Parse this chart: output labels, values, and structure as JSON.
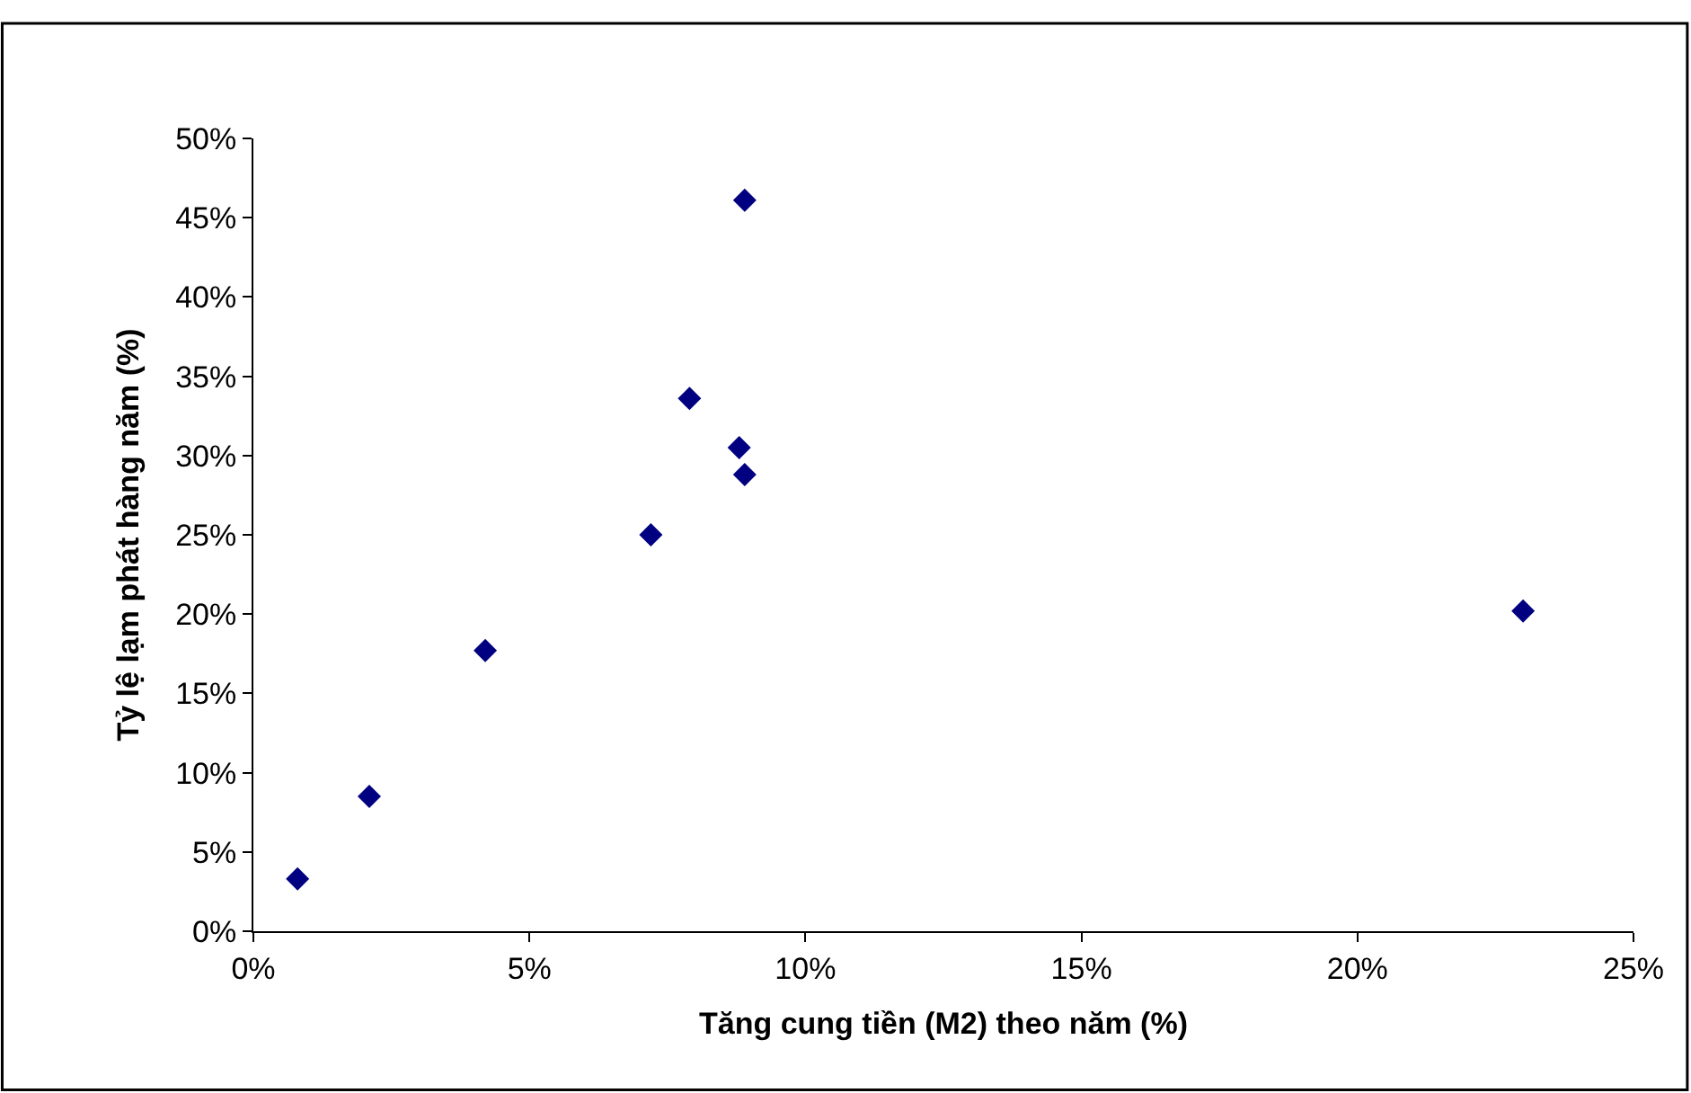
{
  "chart_data": {
    "type": "scatter",
    "xlabel": "Tăng cung tiền (M2) theo năm (%)",
    "ylabel": "Tỷ lệ lạm phát hàng năm (%)",
    "x": [
      0.8,
      2.1,
      4.2,
      7.2,
      7.9,
      8.8,
      8.9,
      8.9,
      23.0
    ],
    "series": [
      {
        "color": "#000080",
        "values": [
          3.3,
          8.5,
          17.7,
          25.0,
          33.6,
          30.5,
          28.8,
          46.1,
          20.2
        ]
      }
    ],
    "marker": "diamond",
    "grid": false,
    "xlim": [
      0,
      25
    ],
    "xticks": [
      {
        "value": 0,
        "label": "0%"
      },
      {
        "value": 5,
        "label": "5%"
      },
      {
        "value": 10,
        "label": "10%"
      },
      {
        "value": 15,
        "label": "15%"
      },
      {
        "value": 20,
        "label": "20%"
      },
      {
        "value": 25,
        "label": "25%"
      }
    ],
    "ylim": [
      0,
      50
    ],
    "yticks": [
      {
        "value": 0,
        "label": "0%"
      },
      {
        "value": 5,
        "label": "5%"
      },
      {
        "value": 10,
        "label": "10%"
      },
      {
        "value": 15,
        "label": "15%"
      },
      {
        "value": 20,
        "label": "20%"
      },
      {
        "value": 25,
        "label": "25%"
      },
      {
        "value": 30,
        "label": "30%"
      },
      {
        "value": 35,
        "label": "35%"
      },
      {
        "value": 40,
        "label": "40%"
      },
      {
        "value": 45,
        "label": "45%"
      },
      {
        "value": 50,
        "label": "50%"
      }
    ]
  }
}
